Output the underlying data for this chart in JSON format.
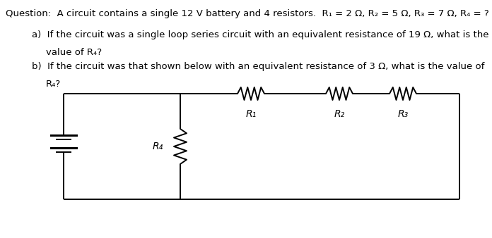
{
  "title_text": "Question:  A circuit contains a single 12 V battery and 4 resistors.  R₁ = 2 Ω, R₂ = 5 Ω, R₃ = 7 Ω, R₄ = ?",
  "part_a_prefix": "a)  ",
  "part_a_body": "If the circuit was a single loop series circuit with an equivalent resistance of 19 Ω, what is the\n      value of R₄?",
  "part_b_prefix": "b)  ",
  "part_b_body": "If the circuit was that shown below with an equivalent resistance of 3 Ω, what is the value of\n      R₄?",
  "bg_color": "#ffffff",
  "text_color": "#000000",
  "font_size_title": 9.5,
  "font_size_body": 9.5,
  "circuit": {
    "r4_label": "R₄",
    "r1_label": "R₁",
    "r2_label": "R₂",
    "r3_label": "R₃"
  }
}
